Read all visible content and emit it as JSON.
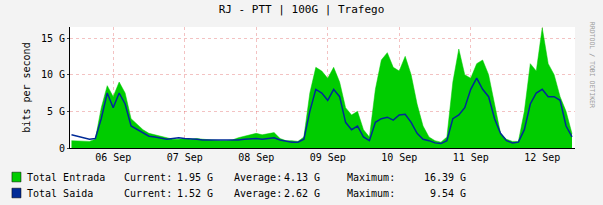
{
  "chart_data": {
    "type": "area",
    "title": "RJ - PTT | 100G | Trafego",
    "y_label": "bits per second",
    "watermark": "RRDTOOL / TOBI OETIKER",
    "stats_labels": [
      "Current:",
      "Average:",
      "Maximum:"
    ],
    "x": [
      -2,
      0,
      2,
      4,
      6,
      8,
      10,
      12,
      14,
      16,
      18,
      20,
      22,
      24,
      26,
      28,
      30,
      32,
      34,
      36,
      38,
      40,
      42,
      44,
      46,
      48,
      50,
      52,
      54,
      56,
      58,
      60,
      62,
      64,
      66,
      68,
      70,
      72,
      74,
      76,
      78,
      80,
      82,
      84,
      86,
      88,
      90,
      92,
      94,
      96,
      98,
      100,
      102,
      104,
      106,
      108,
      110,
      112,
      114,
      116,
      118,
      120,
      122,
      124,
      126,
      128,
      130,
      132,
      134,
      136,
      138,
      140,
      142,
      144,
      146,
      148,
      150,
      152,
      154,
      156,
      158,
      160,
      162,
      164,
      166
    ],
    "series": [
      {
        "name": "Total Entrada",
        "type": "area",
        "color": "#00cc00",
        "stats": [
          "1.95 G",
          "4.13 G",
          "16.39 G"
        ],
        "values": [
          1000000000.0,
          1000000000.0,
          1000000000.0,
          900000000.0,
          1200000000.0,
          5500000000.0,
          8500000000.0,
          7000000000.0,
          9000000000.0,
          7500000000.0,
          4000000000.0,
          3200000000.0,
          2500000000.0,
          2000000000.0,
          1800000000.0,
          1500000000.0,
          1300000000.0,
          1200000000.0,
          1200000000.0,
          1300000000.0,
          1200000000.0,
          1300000000.0,
          1200000000.0,
          1100000000.0,
          1000000000.0,
          1000000000.0,
          1000000000.0,
          1100000000.0,
          1400000000.0,
          1600000000.0,
          1800000000.0,
          2000000000.0,
          1800000000.0,
          1900000000.0,
          2100000000.0,
          1300000000.0,
          1000000000.0,
          1000000000.0,
          900000000.0,
          1500000000.0,
          7500000000.0,
          11000000000.0,
          10500000000.0,
          9500000000.0,
          11000000000.0,
          9000000000.0,
          5500000000.0,
          4500000000.0,
          5000000000.0,
          2500000000.0,
          1500000000.0,
          8000000000.0,
          12000000000.0,
          13000000000.0,
          11000000000.0,
          10500000000.0,
          12500000000.0,
          10000000000.0,
          6000000000.0,
          3000000000.0,
          1500000000.0,
          1000000000.0,
          800000000.0,
          1500000000.0,
          9000000000.0,
          13500000000.0,
          10000000000.0,
          9500000000.0,
          11500000000.0,
          12000000000.0,
          10000000000.0,
          6000000000.0,
          2000000000.0,
          1200000000.0,
          900000000.0,
          900000000.0,
          5000000000.0,
          11500000000.0,
          10500000000.0,
          16390000000.0,
          11500000000.0,
          10000000000.0,
          7000000000.0,
          5000000000.0,
          1950000000.0
        ]
      },
      {
        "name": "Total Saida",
        "type": "line",
        "color": "#002a97",
        "stats": [
          "1.52 G",
          "2.62 G",
          "9.54 G"
        ],
        "values": [
          1800000000.0,
          1600000000.0,
          1300000000.0,
          1200000000.0,
          1300000000.0,
          4000000000.0,
          7500000000.0,
          5500000000.0,
          7500000000.0,
          6000000000.0,
          3000000000.0,
          2500000000.0,
          2000000000.0,
          1600000000.0,
          1500000000.0,
          1300000000.0,
          1200000000.0,
          1300000000.0,
          1400000000.0,
          1300000000.0,
          1300000000.0,
          1200000000.0,
          1100000000.0,
          1100000000.0,
          1000000000.0,
          1000000000.0,
          1000000000.0,
          1000000000.0,
          1100000000.0,
          1200000000.0,
          1300000000.0,
          1300000000.0,
          1200000000.0,
          1300000000.0,
          1400000000.0,
          1100000000.0,
          900000000.0,
          800000000.0,
          800000000.0,
          1200000000.0,
          5000000000.0,
          8000000000.0,
          7500000000.0,
          6500000000.0,
          8000000000.0,
          7000000000.0,
          3500000000.0,
          2500000000.0,
          3000000000.0,
          1500000000.0,
          1000000000.0,
          3500000000.0,
          4000000000.0,
          4200000000.0,
          3800000000.0,
          4500000000.0,
          4600000000.0,
          3500000000.0,
          2000000000.0,
          1200000000.0,
          1000000000.0,
          700000000.0,
          600000000.0,
          1000000000.0,
          4000000000.0,
          4500000000.0,
          5500000000.0,
          8000000000.0,
          9540000000.0,
          8000000000.0,
          7000000000.0,
          4000000000.0,
          2000000000.0,
          1000000000.0,
          700000000.0,
          800000000.0,
          2500000000.0,
          6000000000.0,
          7500000000.0,
          8000000000.0,
          7000000000.0,
          7000000000.0,
          6500000000.0,
          3000000000.0,
          1520000000.0
        ]
      }
    ],
    "xlim": [
      -2.5,
      167
    ],
    "xticks": [
      {
        "value": 12,
        "label": "06 Sep"
      },
      {
        "value": 36,
        "label": "07 Sep"
      },
      {
        "value": 60,
        "label": "08 Sep"
      },
      {
        "value": 84,
        "label": "09 Sep"
      },
      {
        "value": 108,
        "label": "10 Sep"
      },
      {
        "value": 132,
        "label": "11 Sep"
      },
      {
        "value": 156,
        "label": "12 Sep"
      }
    ],
    "ylim": [
      0,
      16500000000.0
    ],
    "yticks": [
      0,
      {
        "value": 5000000000.0,
        "label": "5 G"
      },
      {
        "value": 10000000000.0,
        "label": "10 G"
      },
      {
        "value": 15000000000.0,
        "label": "15 G"
      }
    ],
    "grid": true
  }
}
